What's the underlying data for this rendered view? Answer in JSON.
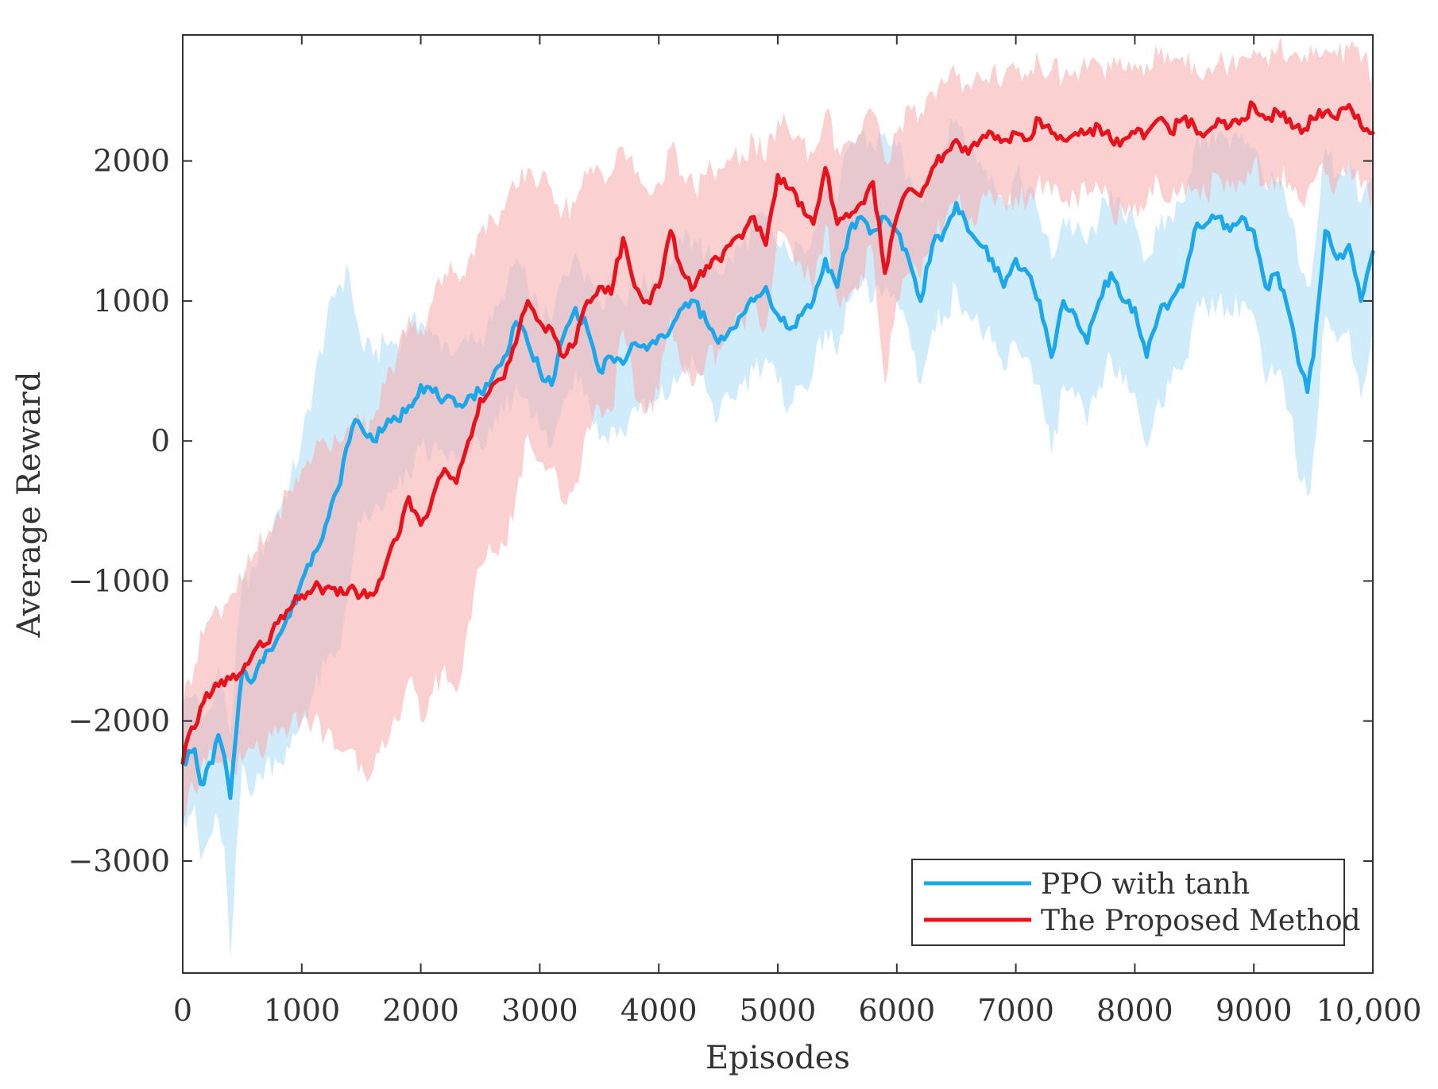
{
  "colors": {
    "ppo": "#1aa7ec",
    "ppo_band": "#aadcf7",
    "proposed": "#e8121c",
    "proposed_band": "#f7b0b0",
    "axis": "#333333"
  },
  "chart_data": {
    "type": "line",
    "title": "",
    "xlabel": "Episodes",
    "ylabel": "Average Reward",
    "xlim": [
      0,
      10000
    ],
    "ylim": [
      -3800,
      2900
    ],
    "xticks": [
      0,
      1000,
      2000,
      3000,
      4000,
      5000,
      6000,
      7000,
      8000,
      9000,
      10000
    ],
    "xtick_labels": [
      "0",
      "1000",
      "2000",
      "3000",
      "4000",
      "5000",
      "6000",
      "7000",
      "8000",
      "9000",
      "10,000"
    ],
    "yticks": [
      -3000,
      -2000,
      -1000,
      0,
      1000,
      2000
    ],
    "ytick_labels": [
      "−3000",
      "−2000",
      "−1000",
      "0",
      "1000",
      "2000"
    ],
    "grid": false,
    "legend_position": "bottom-right",
    "series": [
      {
        "name": "PPO with tanh",
        "color": "#1aa7ec",
        "x": [
          0,
          100,
          150,
          250,
          300,
          350,
          400,
          500,
          600,
          700,
          800,
          900,
          1000,
          1100,
          1200,
          1300,
          1400,
          1450,
          1500,
          1600,
          1700,
          1800,
          1900,
          2000,
          2100,
          2200,
          2300,
          2400,
          2500,
          2600,
          2700,
          2800,
          2900,
          3000,
          3100,
          3200,
          3300,
          3400,
          3500,
          3600,
          3700,
          3800,
          3900,
          4000,
          4100,
          4200,
          4300,
          4400,
          4500,
          4600,
          4700,
          4800,
          4900,
          5000,
          5100,
          5200,
          5300,
          5400,
          5500,
          5600,
          5700,
          5800,
          5900,
          6000,
          6100,
          6200,
          6300,
          6400,
          6500,
          6600,
          6700,
          6800,
          6900,
          7000,
          7100,
          7200,
          7300,
          7400,
          7500,
          7600,
          7700,
          7800,
          7900,
          8000,
          8100,
          8200,
          8300,
          8400,
          8500,
          8600,
          8700,
          8800,
          8900,
          9000,
          9100,
          9200,
          9300,
          9400,
          9450,
          9500,
          9600,
          9700,
          9800,
          9900,
          10000
        ],
        "values": [
          -2300,
          -2200,
          -2450,
          -2300,
          -2100,
          -2250,
          -2550,
          -1650,
          -1700,
          -1500,
          -1400,
          -1250,
          -1000,
          -800,
          -600,
          -350,
          0,
          150,
          100,
          0,
          100,
          150,
          250,
          400,
          350,
          300,
          250,
          320,
          350,
          450,
          600,
          850,
          700,
          500,
          400,
          750,
          950,
          800,
          500,
          600,
          550,
          700,
          650,
          750,
          800,
          950,
          1000,
          850,
          700,
          800,
          900,
          1000,
          1100,
          900,
          800,
          900,
          1000,
          1300,
          1100,
          1500,
          1600,
          1500,
          1600,
          1500,
          1300,
          1000,
          1400,
          1500,
          1700,
          1500,
          1400,
          1300,
          1100,
          1300,
          1200,
          1000,
          600,
          1000,
          900,
          700,
          1000,
          1200,
          1000,
          950,
          600,
          900,
          1000,
          1100,
          1500,
          1550,
          1600,
          1500,
          1600,
          1500,
          1100,
          1200,
          900,
          500,
          350,
          600,
          1500,
          1300,
          1400,
          1000,
          1350
        ],
        "band_upper": [
          -1900,
          -1800,
          -2000,
          -1900,
          -1600,
          -1800,
          -2100,
          -1000,
          -900,
          -700,
          -500,
          -300,
          0,
          400,
          800,
          1100,
          1200,
          900,
          700,
          600,
          700,
          700,
          800,
          850,
          750,
          700,
          650,
          700,
          750,
          850,
          1000,
          1300,
          1100,
          900,
          850,
          1200,
          1350,
          1200,
          1000,
          1100,
          1000,
          1150,
          1100,
          1200,
          1250,
          1400,
          1450,
          1350,
          1200,
          1300,
          1400,
          1500,
          1600,
          1400,
          1300,
          1400,
          1500,
          1800,
          1700,
          2100,
          2200,
          2100,
          2200,
          2100,
          1900,
          1700,
          2000,
          2100,
          2300,
          2100,
          2000,
          1900,
          1700,
          1900,
          1800,
          1600,
          1300,
          1600,
          1500,
          1400,
          1600,
          1800,
          1600,
          1550,
          1300,
          1500,
          1600,
          1700,
          2100,
          2150,
          2200,
          2100,
          2200,
          2100,
          1800,
          1850,
          1600,
          1200,
          1100,
          1300,
          2100,
          1900,
          2000,
          1700,
          1900
        ],
        "band_lower": [
          -2700,
          -2600,
          -3000,
          -2800,
          -2700,
          -2900,
          -3700,
          -2300,
          -2500,
          -2300,
          -2300,
          -2200,
          -2000,
          -1800,
          -1600,
          -1500,
          -1100,
          -700,
          -600,
          -500,
          -450,
          -350,
          -250,
          -50,
          -50,
          -100,
          -150,
          -80,
          -50,
          50,
          200,
          400,
          300,
          100,
          -50,
          300,
          500,
          350,
          0,
          100,
          50,
          250,
          200,
          300,
          350,
          500,
          550,
          350,
          150,
          300,
          400,
          500,
          600,
          400,
          250,
          400,
          500,
          800,
          600,
          1000,
          1100,
          1000,
          1100,
          1000,
          800,
          400,
          800,
          900,
          1100,
          900,
          800,
          700,
          500,
          700,
          600,
          400,
          -100,
          400,
          300,
          100,
          400,
          600,
          400,
          350,
          -50,
          300,
          400,
          500,
          900,
          950,
          1000,
          900,
          1000,
          900,
          400,
          500,
          200,
          -300,
          -400,
          -100,
          900,
          700,
          800,
          300,
          800
        ]
      },
      {
        "name": "The Proposed Method",
        "color": "#e8121c",
        "x": [
          0,
          50,
          100,
          200,
          300,
          400,
          500,
          600,
          700,
          800,
          900,
          1000,
          1100,
          1200,
          1300,
          1400,
          1500,
          1600,
          1700,
          1800,
          1900,
          2000,
          2100,
          2200,
          2300,
          2400,
          2500,
          2600,
          2700,
          2800,
          2900,
          3000,
          3100,
          3200,
          3300,
          3400,
          3500,
          3600,
          3700,
          3800,
          3900,
          4000,
          4100,
          4200,
          4300,
          4400,
          4500,
          4600,
          4700,
          4800,
          4900,
          5000,
          5100,
          5200,
          5300,
          5400,
          5500,
          5600,
          5700,
          5800,
          5900,
          6000,
          6100,
          6200,
          6300,
          6400,
          6500,
          6600,
          6700,
          6800,
          6900,
          7000,
          7100,
          7200,
          7300,
          7400,
          7500,
          7600,
          7700,
          7800,
          7900,
          8000,
          8100,
          8200,
          8300,
          8400,
          8500,
          8600,
          8700,
          8800,
          8900,
          9000,
          9100,
          9200,
          9300,
          9400,
          9500,
          9600,
          9700,
          9800,
          9900,
          10000
        ],
        "values": [
          -2300,
          -2100,
          -2050,
          -1800,
          -1750,
          -1700,
          -1650,
          -1500,
          -1450,
          -1300,
          -1200,
          -1100,
          -1050,
          -1050,
          -1100,
          -1050,
          -1100,
          -1100,
          -900,
          -700,
          -400,
          -600,
          -400,
          -200,
          -300,
          0,
          300,
          400,
          450,
          700,
          1000,
          850,
          800,
          600,
          700,
          1000,
          1100,
          1050,
          1450,
          1100,
          1000,
          1100,
          1500,
          1200,
          1100,
          1250,
          1300,
          1400,
          1450,
          1600,
          1400,
          1900,
          1800,
          1700,
          1550,
          1950,
          1550,
          1600,
          1700,
          1850,
          1200,
          1600,
          1800,
          1750,
          1950,
          2050,
          2150,
          2050,
          2150,
          2200,
          2150,
          2200,
          2150,
          2300,
          2200,
          2150,
          2200,
          2200,
          2250,
          2150,
          2150,
          2200,
          2200,
          2300,
          2200,
          2300,
          2250,
          2200,
          2300,
          2250,
          2300,
          2400,
          2300,
          2350,
          2300,
          2200,
          2300,
          2350,
          2300,
          2400,
          2250,
          2200
        ],
        "band_upper": [
          -1900,
          -1700,
          -1600,
          -1300,
          -1200,
          -1100,
          -1000,
          -800,
          -700,
          -500,
          -350,
          -200,
          -100,
          0,
          0,
          100,
          100,
          150,
          400,
          600,
          900,
          800,
          1000,
          1200,
          1200,
          1300,
          1500,
          1600,
          1650,
          1800,
          1950,
          1850,
          1800,
          1650,
          1700,
          1900,
          1950,
          1900,
          2100,
          1900,
          1800,
          1850,
          2100,
          1900,
          1800,
          1900,
          1950,
          2000,
          2050,
          2150,
          2000,
          2300,
          2200,
          2150,
          2050,
          2350,
          2100,
          2150,
          2200,
          2350,
          2000,
          2200,
          2400,
          2350,
          2500,
          2550,
          2600,
          2550,
          2600,
          2650,
          2600,
          2650,
          2600,
          2700,
          2650,
          2600,
          2650,
          2650,
          2700,
          2650,
          2650,
          2700,
          2700,
          2750,
          2700,
          2750,
          2700,
          2650,
          2700,
          2700,
          2750,
          2800,
          2750,
          2800,
          2750,
          2700,
          2750,
          2800,
          2750,
          2800,
          2700,
          2650
        ],
        "band_lower": [
          -2700,
          -2500,
          -2500,
          -2300,
          -2300,
          -2300,
          -2300,
          -2200,
          -2200,
          -2100,
          -2050,
          -2000,
          -2000,
          -2100,
          -2200,
          -2200,
          -2300,
          -2350,
          -2200,
          -2000,
          -1700,
          -2000,
          -1800,
          -1600,
          -1800,
          -1300,
          -900,
          -800,
          -750,
          -400,
          50,
          -150,
          -200,
          -450,
          -300,
          100,
          250,
          200,
          800,
          300,
          200,
          350,
          900,
          500,
          400,
          600,
          650,
          800,
          850,
          1050,
          800,
          1500,
          1400,
          1250,
          1050,
          1550,
          1000,
          1050,
          1200,
          1350,
          400,
          1000,
          1200,
          1150,
          1400,
          1550,
          1700,
          1550,
          1700,
          1750,
          1700,
          1750,
          1700,
          1900,
          1750,
          1700,
          1750,
          1750,
          1800,
          1650,
          1650,
          1700,
          1700,
          1850,
          1700,
          1850,
          1800,
          1750,
          1900,
          1800,
          1850,
          2000,
          1850,
          1900,
          1850,
          1700,
          1850,
          1900,
          1850,
          2000,
          1800,
          1750
        ]
      }
    ]
  }
}
